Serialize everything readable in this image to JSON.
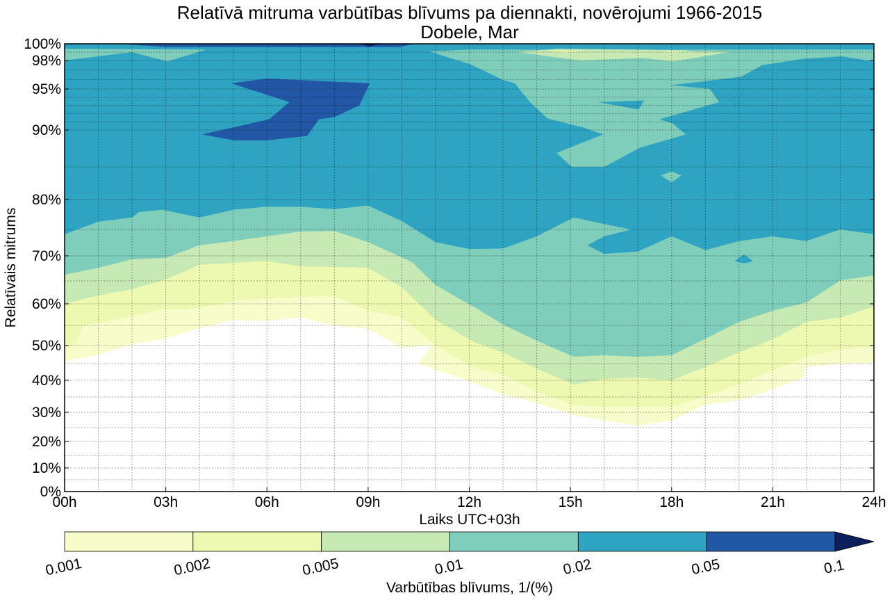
{
  "chart_data": {
    "type": "contour",
    "title": "Relatīvā mitruma varbūtības blīvums pa diennakti, novērojumi 1966-2015",
    "subtitle": "Dobele, Mar",
    "xlabel": "Laiks UTC+03h",
    "ylabel": "Relatīvais mitrums",
    "xlim": [
      0,
      24
    ],
    "ylim": [
      0,
      100
    ],
    "grid": true,
    "x_ticks": [
      {
        "value": 0,
        "label": "00h"
      },
      {
        "value": 3,
        "label": "03h"
      },
      {
        "value": 6,
        "label": "06h"
      },
      {
        "value": 9,
        "label": "09h"
      },
      {
        "value": 12,
        "label": "12h"
      },
      {
        "value": 15,
        "label": "15h"
      },
      {
        "value": 18,
        "label": "18h"
      },
      {
        "value": 21,
        "label": "21h"
      },
      {
        "value": 24,
        "label": "24h"
      }
    ],
    "y_ticks": [
      {
        "value": 0,
        "label": "0%"
      },
      {
        "value": 10,
        "label": "10%"
      },
      {
        "value": 20,
        "label": "20%"
      },
      {
        "value": 30,
        "label": "30%"
      },
      {
        "value": 40,
        "label": "40%"
      },
      {
        "value": 50,
        "label": "50%"
      },
      {
        "value": 60,
        "label": "60%"
      },
      {
        "value": 70,
        "label": "70%"
      },
      {
        "value": 80,
        "label": "80%"
      },
      {
        "value": 90,
        "label": "90%"
      },
      {
        "value": 95,
        "label": "95%"
      },
      {
        "value": 98,
        "label": "98%"
      },
      {
        "value": 100,
        "label": "100%"
      }
    ],
    "y_grid": [
      5,
      10,
      15,
      20,
      25,
      30,
      35,
      40,
      45,
      50,
      55,
      60,
      65,
      70,
      75,
      80,
      85,
      90,
      91,
      92,
      93,
      94,
      95,
      96,
      97,
      98,
      99
    ],
    "colorbar": {
      "label": "Varbūtības blīvums, 1/(%)",
      "levels": [
        0.001,
        0.002,
        0.005,
        0.01,
        0.02,
        0.05,
        0.1
      ],
      "tick_labels": [
        "0.001",
        "0.002",
        "0.005",
        "0.01",
        "0.02",
        "0.05",
        "0.1"
      ],
      "colors": [
        "#f8fccb",
        "#edf8b1",
        "#c7e9b4",
        "#7fcdbb",
        "#2ea3c2",
        "#2257a5"
      ],
      "extend_color": "#0c1f5c",
      "extend": "max"
    },
    "contours": [
      {
        "level": 0.001,
        "color": "#f8fccb",
        "lower_boundary": [
          [
            0,
            45.6
          ],
          [
            1,
            47.5
          ],
          [
            2,
            50.3
          ],
          [
            2.9,
            51.6
          ],
          [
            4,
            54.3
          ],
          [
            5,
            56.3
          ],
          [
            6,
            56.0
          ],
          [
            7,
            56.8
          ],
          [
            8,
            55
          ],
          [
            9,
            54.1
          ],
          [
            10,
            49.4
          ],
          [
            10.9,
            50
          ],
          [
            10.5,
            45.2
          ],
          [
            11,
            43.1
          ],
          [
            11.7,
            40.8
          ],
          [
            13,
            35.8
          ],
          [
            14,
            33.0
          ],
          [
            15.1,
            29.1
          ],
          [
            16,
            27.3
          ],
          [
            17,
            25.7
          ],
          [
            18,
            27.3
          ],
          [
            19,
            32.5
          ],
          [
            20,
            33.9
          ],
          [
            21,
            37.3
          ],
          [
            21.9,
            40.8
          ],
          [
            22,
            44.0
          ],
          [
            23,
            45
          ],
          [
            24,
            45.2
          ]
        ]
      },
      {
        "level": 0.002,
        "color": "#edf8b1",
        "lower_boundary": [
          [
            0,
            50
          ],
          [
            0.3,
            50
          ],
          [
            0.55,
            55
          ],
          [
            1,
            55.5
          ],
          [
            2,
            57.1
          ],
          [
            2.9,
            58.7
          ],
          [
            4,
            58.9
          ],
          [
            5,
            60.7
          ],
          [
            6,
            61.1
          ],
          [
            7,
            61.5
          ],
          [
            8,
            61.7
          ],
          [
            9,
            58.4
          ],
          [
            10,
            56.8
          ],
          [
            11,
            50
          ],
          [
            11.7,
            46.2
          ],
          [
            12,
            44.2
          ],
          [
            13,
            41.5
          ],
          [
            14,
            36.7
          ],
          [
            15.1,
            32.3
          ],
          [
            16,
            31.8
          ],
          [
            17,
            31.8
          ],
          [
            18,
            31.8
          ],
          [
            19,
            35.2
          ],
          [
            20,
            38.75
          ],
          [
            21,
            42.9
          ],
          [
            22,
            46.9
          ],
          [
            23,
            49.0
          ],
          [
            24,
            49.8
          ]
        ]
      },
      {
        "level": 0.005,
        "color": "#c7e9b4",
        "lower_boundary": [
          [
            0,
            60
          ],
          [
            1,
            61.8
          ],
          [
            2,
            63.2
          ],
          [
            3,
            65.3
          ],
          [
            4,
            68.2
          ],
          [
            5,
            68.6
          ],
          [
            6,
            69.0
          ],
          [
            7,
            67.9
          ],
          [
            8,
            67.8
          ],
          [
            9,
            67.6
          ],
          [
            10,
            63.6
          ],
          [
            11,
            56.3
          ],
          [
            11.7,
            53.0
          ],
          [
            12.2,
            50.7
          ],
          [
            13,
            48.1
          ],
          [
            14,
            43.5
          ],
          [
            15.1,
            38.75
          ],
          [
            16,
            40.4
          ],
          [
            17,
            40.8
          ],
          [
            18,
            40
          ],
          [
            19,
            44.0
          ],
          [
            20,
            48.1
          ],
          [
            21,
            51.6
          ],
          [
            22,
            55.8
          ],
          [
            23,
            56.8
          ],
          [
            24,
            59.4
          ]
        ]
      },
      {
        "level": 0.01,
        "color": "#7fcdbb",
        "lower_boundary": [
          [
            0,
            66.25
          ],
          [
            1,
            67.6
          ],
          [
            2,
            69.3
          ],
          [
            3,
            69.6
          ],
          [
            4,
            72.0
          ],
          [
            5,
            72.8
          ],
          [
            6,
            73.7
          ],
          [
            7,
            74.6
          ],
          [
            8,
            74.7
          ],
          [
            9,
            72.6
          ],
          [
            10,
            69.7
          ],
          [
            10.3,
            68.75
          ],
          [
            11,
            64.1
          ],
          [
            11.7,
            61.1
          ],
          [
            12.2,
            59.0
          ],
          [
            13,
            55.2
          ],
          [
            14,
            51.2
          ],
          [
            15.1,
            46.9
          ],
          [
            16,
            47.3
          ],
          [
            17,
            46.9
          ],
          [
            18,
            47.3
          ],
          [
            19,
            51.7
          ],
          [
            20,
            55.8
          ],
          [
            21,
            58.4
          ],
          [
            22,
            60.3
          ],
          [
            23,
            65.1
          ],
          [
            24,
            66.1
          ]
        ]
      },
      {
        "level": 0.02,
        "color": "#2ea3c2",
        "lower_boundary": [
          [
            0,
            74.1
          ],
          [
            1,
            76.3
          ],
          [
            2,
            77.0
          ],
          [
            2.2,
            77.9
          ],
          [
            2.9,
            78.3
          ],
          [
            4,
            77.0
          ],
          [
            5,
            78.3
          ],
          [
            6,
            78.8
          ],
          [
            7,
            78.8
          ],
          [
            8,
            78.4
          ],
          [
            9,
            79.0
          ],
          [
            10,
            76.4
          ],
          [
            11,
            72.6
          ],
          [
            12,
            71.3
          ],
          [
            13,
            71.4
          ],
          [
            14,
            73.7
          ],
          [
            14.4,
            75.0
          ],
          [
            15.1,
            77.0
          ],
          [
            16,
            75.9
          ],
          [
            16.8,
            75.0
          ],
          [
            16,
            73.7
          ],
          [
            15.5,
            72.0
          ],
          [
            16,
            70.4
          ],
          [
            17,
            70.8
          ],
          [
            18,
            73.7
          ],
          [
            19,
            71.1
          ],
          [
            20,
            72.8
          ],
          [
            21,
            73.7
          ],
          [
            22,
            72.8
          ],
          [
            23,
            75.0
          ],
          [
            24,
            74.1
          ]
        ]
      }
    ],
    "islands": [
      {
        "level": 0.01,
        "color": "#7fcdbb",
        "points": [
          [
            10.8,
            99.1
          ],
          [
            12.03,
            97.6
          ],
          [
            13.0,
            95.95
          ],
          [
            13.35,
            95.6
          ],
          [
            13.54,
            94.7
          ],
          [
            13.8,
            93.4
          ],
          [
            14.32,
            91.4
          ],
          [
            15.39,
            90.3
          ],
          [
            15.97,
            89.4
          ],
          [
            14.59,
            86.9
          ],
          [
            15.04,
            85
          ],
          [
            16.01,
            85
          ],
          [
            17.06,
            87.6
          ],
          [
            18.42,
            89.4
          ],
          [
            18.03,
            90.8
          ],
          [
            17.64,
            91.3
          ],
          [
            19.41,
            93.4
          ],
          [
            19.14,
            95
          ],
          [
            17.98,
            95.4
          ],
          [
            18.95,
            95.8
          ],
          [
            20.07,
            96.3
          ],
          [
            20.68,
            97.5
          ],
          [
            21.92,
            98.2
          ],
          [
            23.05,
            98.5
          ],
          [
            24,
            97.9
          ],
          [
            24,
            99.3
          ],
          [
            12,
            99.3
          ]
        ]
      },
      {
        "level": 0.005,
        "color": "#c7e9b4",
        "points": [
          [
            13.45,
            99.0
          ],
          [
            14.59,
            99.4
          ],
          [
            17.06,
            99.3
          ],
          [
            19.7,
            99.0
          ],
          [
            18.03,
            97.9
          ],
          [
            17.14,
            98.3
          ],
          [
            15.29,
            98.0
          ]
        ]
      },
      {
        "level": 0.002,
        "color": "#edf8b1",
        "points": [
          [
            14.3,
            99.2
          ],
          [
            15.4,
            99.2
          ],
          [
            14.85,
            98.9
          ]
        ]
      },
      {
        "level": 0.002,
        "color": "#edf8b1",
        "points": [
          [
            17.6,
            99.2
          ],
          [
            18.5,
            99.2
          ],
          [
            18.05,
            98.9
          ]
        ]
      },
      {
        "level": 0.01,
        "color": "#7fcdbb",
        "points": [
          [
            0,
            99.4
          ],
          [
            4.2,
            99.3
          ],
          [
            3.05,
            97.9
          ],
          [
            2.0,
            99.0
          ],
          [
            0,
            98.0
          ]
        ]
      },
      {
        "level": 0.05,
        "color": "#2257a5",
        "points": [
          [
            4.94,
            95.6
          ],
          [
            6.02,
            96.1
          ],
          [
            9.05,
            95.6
          ],
          [
            8.74,
            93.0
          ],
          [
            8.01,
            91.6
          ],
          [
            7.54,
            91.3
          ],
          [
            7.19,
            89.2
          ],
          [
            6.02,
            88.6
          ],
          [
            5.03,
            88.6
          ],
          [
            4.08,
            89.4
          ],
          [
            6.06,
            91.3
          ],
          [
            6.67,
            93.4
          ]
        ]
      },
      {
        "level": 0.05,
        "color": "#2257a5",
        "points": [
          [
            1.55,
            100
          ],
          [
            3.05,
            99.6
          ],
          [
            9.9,
            99.6
          ],
          [
            10.4,
            100
          ]
        ]
      },
      {
        "level": 0.1,
        "color": "#0c1f5c",
        "points": [
          [
            8.7,
            100
          ],
          [
            9.04,
            99.7
          ],
          [
            9.4,
            100
          ]
        ]
      },
      {
        "level": 0.02,
        "color": "#2ea3c2",
        "points": [
          [
            15.82,
            93.4
          ],
          [
            17.18,
            93.6
          ],
          [
            17.02,
            92.5
          ]
        ]
      },
      {
        "level": 0.01,
        "color": "#7fcdbb",
        "points": [
          [
            17.68,
            83.7
          ],
          [
            18.0,
            84.3
          ],
          [
            18.29,
            83.7
          ],
          [
            18.0,
            82.6
          ]
        ]
      },
      {
        "level": 0.02,
        "color": "#2ea3c2",
        "points": [
          [
            19.86,
            68.9
          ],
          [
            20.15,
            70.3
          ],
          [
            20.42,
            68.9
          ],
          [
            20.15,
            68.5
          ]
        ]
      }
    ]
  }
}
